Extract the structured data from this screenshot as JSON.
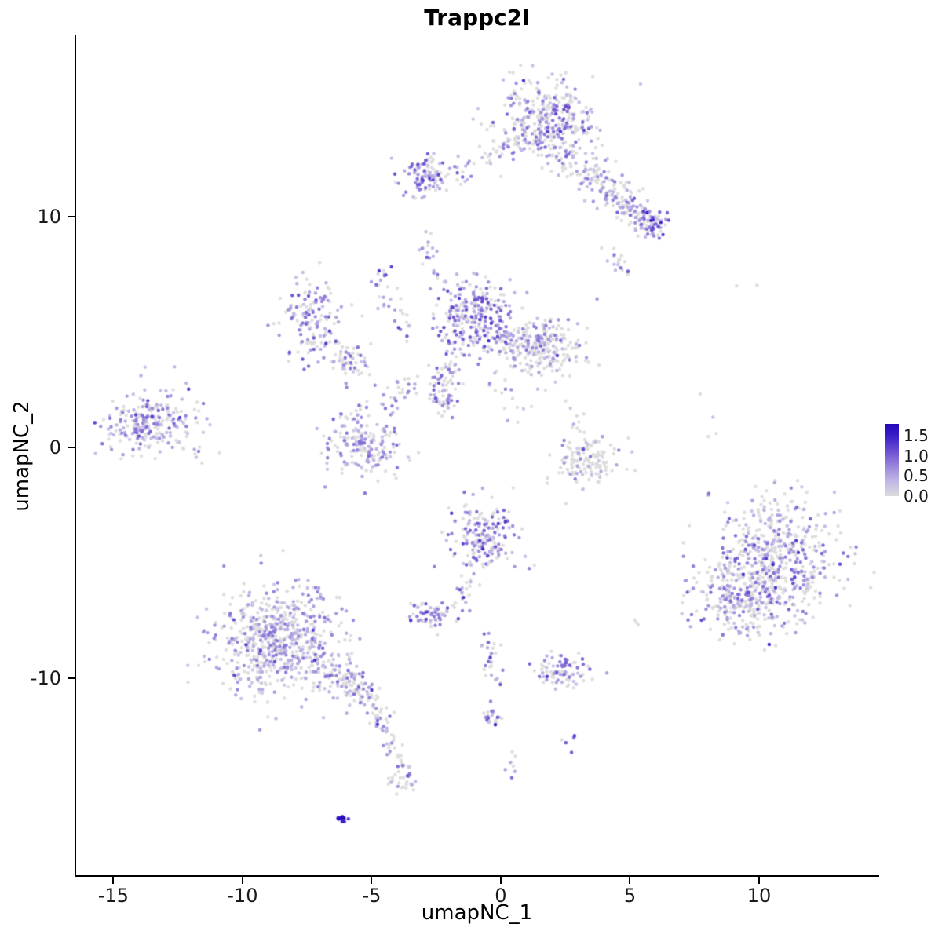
{
  "chart_data": {
    "type": "scatter",
    "title": "Trappc2l",
    "xlabel": "umapNC_1",
    "ylabel": "umapNC_2",
    "xlim": [
      -16.5,
      14.65
    ],
    "ylim": [
      -18.6,
      17.86
    ],
    "x_ticks": {
      "values": [
        -15,
        -10,
        -5,
        0,
        5,
        10
      ],
      "labels": [
        "-15",
        "-10",
        "-5",
        "0",
        "5",
        "10"
      ]
    },
    "y_ticks": {
      "values": [
        -10,
        0,
        10
      ],
      "labels": [
        "-10",
        "0",
        "10"
      ]
    },
    "grid": false,
    "legend": {
      "position": "right",
      "values": [
        1.5,
        1.0,
        0.5,
        0.0
      ],
      "labels": [
        "1.5",
        "1.0",
        "0.5",
        "0.0"
      ]
    },
    "point_radius": 2.2,
    "seed": 42,
    "color_scale": {
      "max": 1.8,
      "low_color": "#dcdcdc",
      "high_color": "#2408bb",
      "stops": [
        {
          "t": 0.0,
          "color": "#dcdcdc"
        },
        {
          "t": 0.35,
          "color": "#c3b9e6"
        },
        {
          "t": 0.7,
          "color": "#a08ddc"
        },
        {
          "t": 1.1,
          "color": "#6f52d2"
        },
        {
          "t": 1.5,
          "color": "#3a1ec9"
        },
        {
          "t": 1.8,
          "color": "#2408bb"
        }
      ]
    },
    "clusters": [
      {
        "type": "g",
        "cx": 1.7,
        "cy": 14.2,
        "sx": 0.95,
        "sy": 0.85,
        "n": 340,
        "p": 0.5,
        "m": 0.75
      },
      {
        "type": "l",
        "x1": 2.2,
        "y1": 12.6,
        "x2": 4.2,
        "y2": 11.3,
        "j": 0.45,
        "n": 110,
        "p": 0.4,
        "m": 0.7
      },
      {
        "type": "l",
        "x1": 4.2,
        "y1": 11.1,
        "x2": 6.1,
        "y2": 9.6,
        "j": 0.4,
        "n": 110,
        "p": 0.45,
        "m": 0.8
      },
      {
        "type": "g",
        "cx": 5.8,
        "cy": 9.8,
        "sx": 0.3,
        "sy": 0.3,
        "n": 45,
        "p": 0.8,
        "m": 1.1
      },
      {
        "type": "l",
        "x1": 4.4,
        "y1": 8.4,
        "x2": 4.8,
        "y2": 7.5,
        "j": 0.25,
        "n": 18,
        "p": 0.5,
        "m": 0.8
      },
      {
        "type": "g",
        "cx": -2.9,
        "cy": 11.7,
        "sx": 0.5,
        "sy": 0.5,
        "n": 95,
        "p": 0.65,
        "m": 0.9
      },
      {
        "type": "l",
        "x1": -1.9,
        "y1": 11.9,
        "x2": 0.6,
        "y2": 13.2,
        "j": 0.35,
        "n": 45,
        "p": 0.45,
        "m": 0.7
      },
      {
        "type": "g",
        "cx": -2.8,
        "cy": 8.7,
        "sx": 0.2,
        "sy": 0.3,
        "n": 14,
        "p": 0.7,
        "m": 0.9
      },
      {
        "type": "g",
        "cx": -4.6,
        "cy": 7.1,
        "sx": 0.22,
        "sy": 0.4,
        "n": 16,
        "p": 0.75,
        "m": 1.0
      },
      {
        "type": "l",
        "x1": -4.3,
        "y1": 6.3,
        "x2": -3.7,
        "y2": 5.1,
        "j": 0.25,
        "n": 18,
        "p": 0.5,
        "m": 0.8
      },
      {
        "type": "l",
        "x1": -2.6,
        "y1": 7.9,
        "x2": -2.3,
        "y2": 7.0,
        "j": 0.15,
        "n": 6,
        "p": 0.5,
        "m": 0.8
      },
      {
        "type": "g",
        "cx": -7.3,
        "cy": 5.6,
        "sx": 0.6,
        "sy": 0.85,
        "n": 140,
        "p": 0.55,
        "m": 0.8
      },
      {
        "type": "l",
        "x1": -6.6,
        "y1": 4.3,
        "x2": -5.3,
        "y2": 3.4,
        "j": 0.35,
        "n": 55,
        "p": 0.45,
        "m": 0.7
      },
      {
        "type": "g",
        "cx": -1.0,
        "cy": 5.7,
        "sx": 0.7,
        "sy": 0.8,
        "n": 270,
        "p": 0.68,
        "m": 0.9
      },
      {
        "type": "g",
        "cx": 1.6,
        "cy": 4.4,
        "sx": 0.7,
        "sy": 0.6,
        "n": 210,
        "p": 0.45,
        "m": 0.65
      },
      {
        "type": "l",
        "x1": -0.2,
        "y1": 4.8,
        "x2": 0.9,
        "y2": 4.2,
        "j": 0.3,
        "n": 40,
        "p": 0.5,
        "m": 0.7
      },
      {
        "type": "l",
        "x1": -1.9,
        "y1": 3.7,
        "x2": -2.2,
        "y2": 1.7,
        "j": 0.25,
        "n": 55,
        "p": 0.6,
        "m": 0.85
      },
      {
        "type": "l",
        "x1": -0.4,
        "y1": 3.1,
        "x2": 0.8,
        "y2": 1.1,
        "j": 0.3,
        "n": 14,
        "p": 0.4,
        "m": 0.6
      },
      {
        "type": "g",
        "cx": -2.5,
        "cy": 2.3,
        "sx": 0.15,
        "sy": 0.5,
        "n": 18,
        "p": 0.6,
        "m": 0.9
      },
      {
        "type": "g",
        "cx": -5.3,
        "cy": 0.3,
        "sx": 0.8,
        "sy": 0.75,
        "n": 190,
        "p": 0.55,
        "m": 0.7
      },
      {
        "type": "l",
        "x1": -4.4,
        "y1": 1.7,
        "x2": -3.3,
        "y2": 3.2,
        "j": 0.3,
        "n": 26,
        "p": 0.5,
        "m": 0.7
      },
      {
        "type": "g",
        "cx": -13.7,
        "cy": 1.0,
        "sx": 0.8,
        "sy": 0.65,
        "n": 210,
        "p": 0.6,
        "m": 0.75
      },
      {
        "type": "g",
        "cx": -12.6,
        "cy": 1.4,
        "sx": 1.1,
        "sy": 1.0,
        "n": 30,
        "p": 0.5,
        "m": 0.7
      },
      {
        "type": "g",
        "cx": 3.3,
        "cy": -0.6,
        "sx": 0.65,
        "sy": 0.55,
        "n": 130,
        "p": 0.22,
        "m": 0.6
      },
      {
        "type": "l",
        "x1": 2.6,
        "y1": 1.6,
        "x2": 3.0,
        "y2": 0.3,
        "j": 0.3,
        "n": 12,
        "p": 0.4,
        "m": 0.7
      },
      {
        "type": "g",
        "cx": 10.9,
        "cy": -4.7,
        "sx": 1.25,
        "sy": 1.15,
        "n": 430,
        "p": 0.5,
        "m": 0.75
      },
      {
        "type": "g",
        "cx": 9.5,
        "cy": -6.5,
        "sx": 1.0,
        "sy": 0.9,
        "n": 300,
        "p": 0.5,
        "m": 0.75
      },
      {
        "type": "l",
        "x1": 9.2,
        "y1": -2.6,
        "x2": 11.6,
        "y2": -2.4,
        "j": 0.5,
        "n": 25,
        "p": 0.35,
        "m": 0.6
      },
      {
        "type": "g",
        "cx": -0.6,
        "cy": -3.9,
        "sx": 0.65,
        "sy": 0.8,
        "n": 180,
        "p": 0.6,
        "m": 0.85
      },
      {
        "type": "l",
        "x1": -1.0,
        "y1": -5.4,
        "x2": -1.5,
        "y2": -6.7,
        "j": 0.2,
        "n": 20,
        "p": 0.55,
        "m": 0.8
      },
      {
        "type": "g",
        "cx": -2.6,
        "cy": -7.2,
        "sx": 0.4,
        "sy": 0.32,
        "n": 60,
        "p": 0.7,
        "m": 0.9
      },
      {
        "type": "g",
        "cx": -8.7,
        "cy": -8.3,
        "sx": 1.2,
        "sy": 1.15,
        "n": 620,
        "p": 0.55,
        "m": 0.65
      },
      {
        "type": "l",
        "x1": -7.0,
        "y1": -9.5,
        "x2": -5.2,
        "y2": -10.6,
        "j": 0.4,
        "n": 120,
        "p": 0.55,
        "m": 0.7
      },
      {
        "type": "l",
        "x1": -5.0,
        "y1": -10.8,
        "x2": -4.4,
        "y2": -12.4,
        "j": 0.25,
        "n": 45,
        "p": 0.5,
        "m": 0.7
      },
      {
        "type": "l",
        "x1": -4.3,
        "y1": -12.9,
        "x2": -3.7,
        "y2": -14.1,
        "j": 0.2,
        "n": 25,
        "p": 0.45,
        "m": 0.7
      },
      {
        "type": "g",
        "cx": -3.8,
        "cy": -14.5,
        "sx": 0.3,
        "sy": 0.25,
        "n": 25,
        "p": 0.5,
        "m": 0.8
      },
      {
        "type": "l",
        "x1": -6.3,
        "y1": -16.15,
        "x2": -5.85,
        "y2": -16.05,
        "j": 0.07,
        "n": 14,
        "p": 1.0,
        "m": 1.5,
        "f": 1
      },
      {
        "type": "l",
        "x1": -0.5,
        "y1": -8.4,
        "x2": -0.2,
        "y2": -10.3,
        "j": 0.2,
        "n": 28,
        "p": 0.55,
        "m": 0.8
      },
      {
        "type": "g",
        "cx": -0.35,
        "cy": -11.6,
        "sx": 0.2,
        "sy": 0.35,
        "n": 22,
        "p": 0.6,
        "m": 0.9
      },
      {
        "type": "g",
        "cx": 0.35,
        "cy": -14.0,
        "sx": 0.15,
        "sy": 0.3,
        "n": 7,
        "p": 0.5,
        "m": 0.8
      },
      {
        "type": "g",
        "cx": 2.4,
        "cy": -9.7,
        "sx": 0.55,
        "sy": 0.35,
        "n": 85,
        "p": 0.6,
        "m": 0.8
      },
      {
        "type": "g",
        "cx": 2.7,
        "cy": -12.6,
        "sx": 0.15,
        "sy": 0.2,
        "n": 6,
        "p": 0.7,
        "m": 1.0
      },
      {
        "type": "g",
        "cx": 5.15,
        "cy": -7.5,
        "sx": 0.15,
        "sy": 0.15,
        "n": 3,
        "p": 0.6,
        "m": 0.9
      },
      {
        "type": "g",
        "cx": 8.05,
        "cy": -2.05,
        "sx": 0.1,
        "sy": 0.1,
        "n": 2,
        "p": 0.5,
        "m": 0.8
      },
      {
        "type": "g",
        "cx": 8.15,
        "cy": 0.3,
        "sx": 0.15,
        "sy": 0.5,
        "n": 3,
        "p": 0.4,
        "m": 0.7
      },
      {
        "type": "g",
        "cx": 9.85,
        "cy": 6.95,
        "sx": 0.3,
        "sy": 0.12,
        "n": 2,
        "p": 0.0,
        "m": 0
      },
      {
        "type": "g",
        "cx": 7.75,
        "cy": 2.3,
        "sx": 0.05,
        "sy": 0.05,
        "n": 1,
        "p": 0.0,
        "m": 0
      }
    ]
  }
}
